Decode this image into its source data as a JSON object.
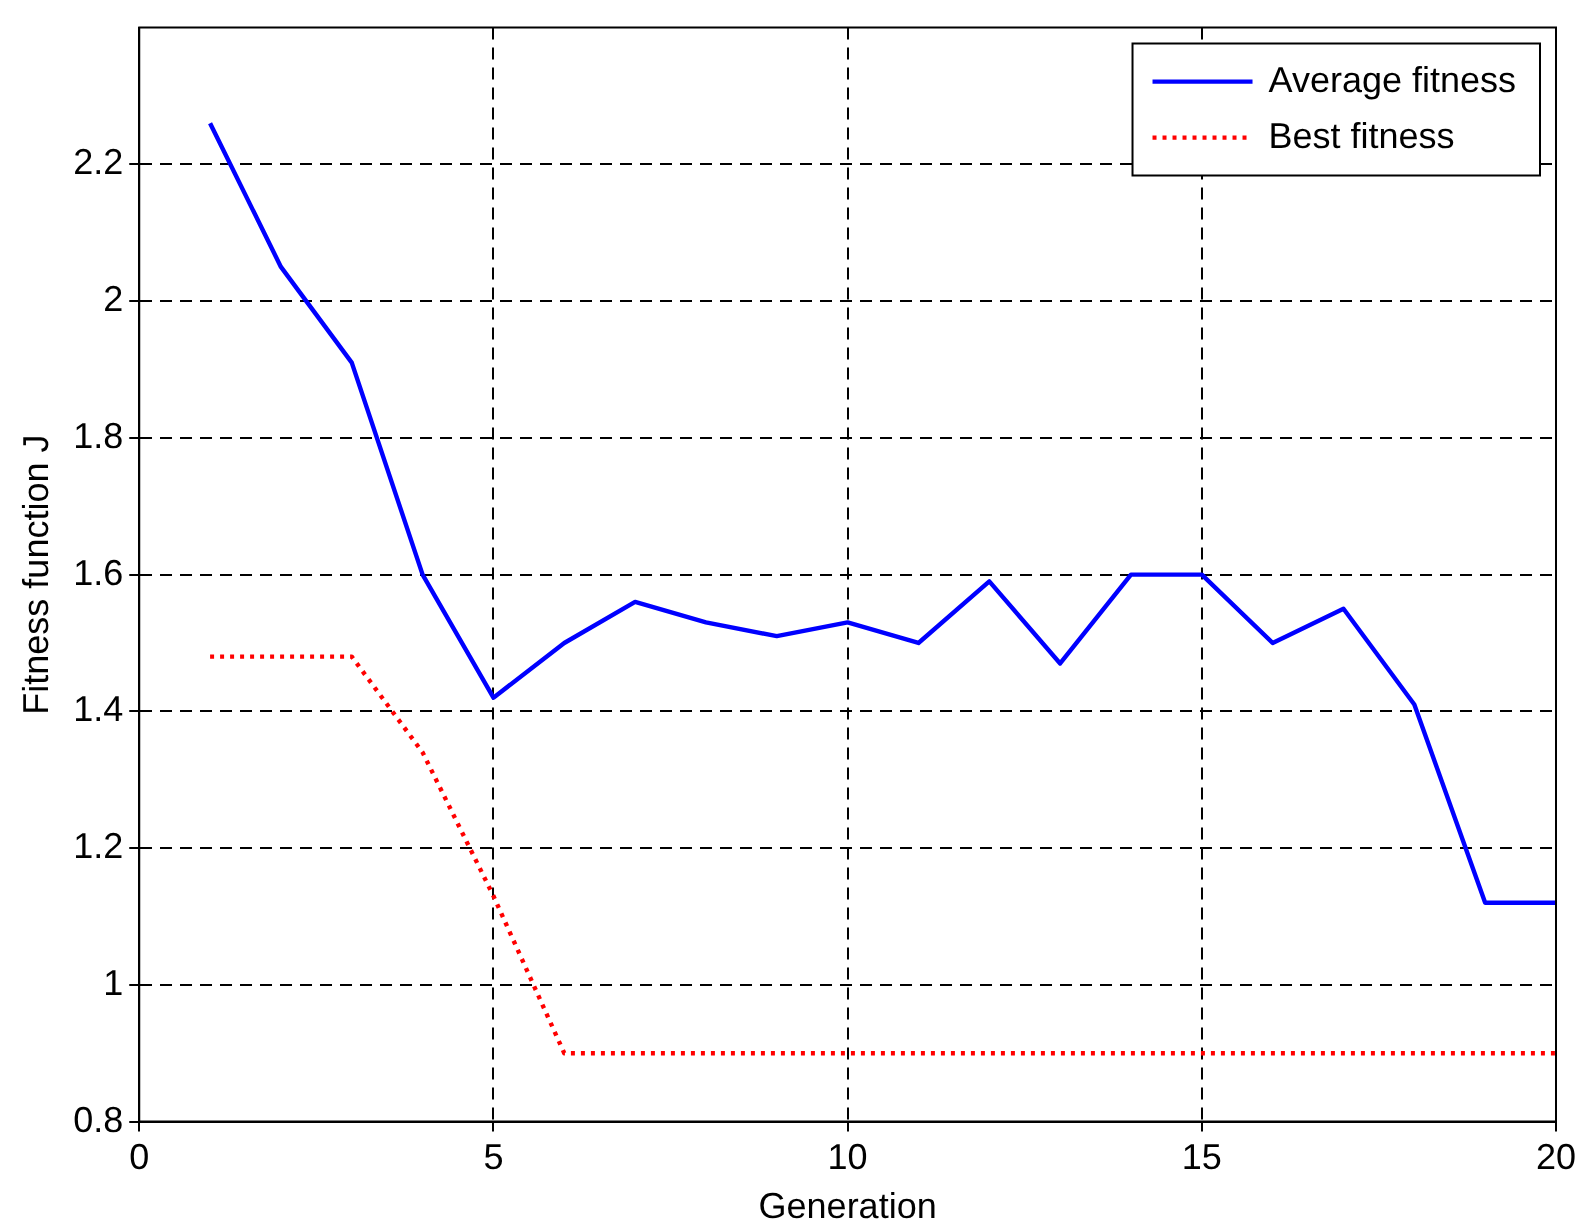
{
  "chart_data": {
    "type": "line",
    "xlabel": "Generation",
    "ylabel": "Fitness function J",
    "x": [
      1,
      2,
      3,
      4,
      5,
      6,
      7,
      8,
      9,
      10,
      11,
      12,
      13,
      14,
      15,
      16,
      17,
      18,
      19,
      20
    ],
    "series": [
      {
        "name": "Average fitness",
        "color": "#0000ff",
        "line_style": "solid",
        "values": [
          2.26,
          2.05,
          1.91,
          1.6,
          1.42,
          1.5,
          1.56,
          1.53,
          1.51,
          1.53,
          1.5,
          1.59,
          1.47,
          1.6,
          1.6,
          1.5,
          1.55,
          1.41,
          1.12,
          1.12
        ]
      },
      {
        "name": "Best fitness",
        "color": "#ff0000",
        "line_style": "dotted",
        "values": [
          1.48,
          1.48,
          1.48,
          1.34,
          1.13,
          0.9,
          0.9,
          0.9,
          0.9,
          0.9,
          0.9,
          0.9,
          0.9,
          0.9,
          0.9,
          0.9,
          0.9,
          0.9,
          0.9,
          0.9
        ]
      }
    ],
    "xlim": [
      0,
      20
    ],
    "xticks": [
      0,
      5,
      10,
      15,
      20
    ],
    "ylim": [
      0.8,
      2.4
    ],
    "yticks": [
      0.8,
      1,
      1.2,
      1.4,
      1.6,
      1.8,
      2,
      2.2
    ],
    "grid": true,
    "legend": "top right",
    "marker": "none"
  }
}
